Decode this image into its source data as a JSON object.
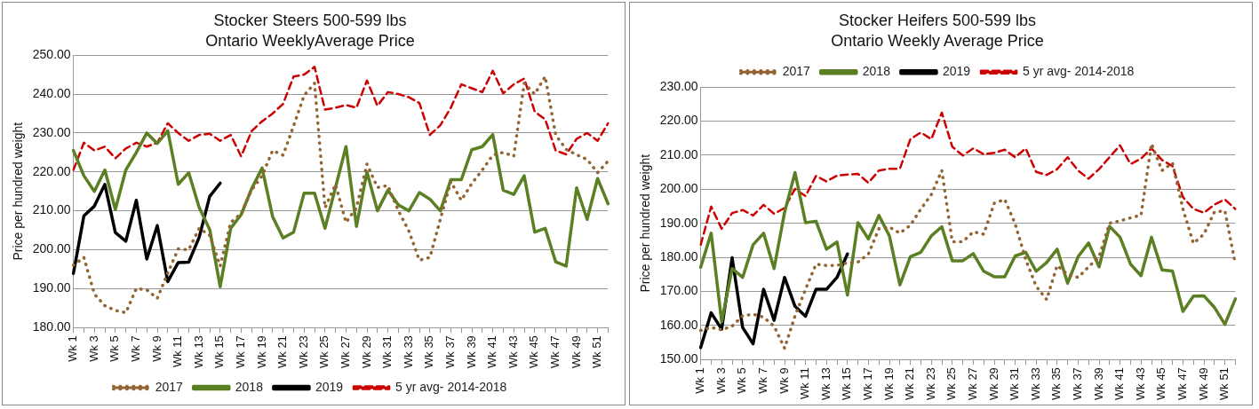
{
  "chart_data": [
    {
      "type": "line",
      "title": "Stocker Steers 500-599 lbs",
      "subtitle": "Ontario WeeklyAverage Price",
      "ylabel": "Price per hundred weight",
      "categories": [
        "Wk 1",
        null,
        "Wk 3",
        null,
        "Wk 5",
        null,
        "Wk 7",
        null,
        "Wk 9",
        null,
        "Wk 11",
        null,
        "Wk 13",
        null,
        "Wk 15",
        null,
        "Wk 17",
        null,
        "Wk 19",
        null,
        "Wk 21",
        null,
        "Wk 23",
        null,
        "Wk 25",
        null,
        "Wk 27",
        null,
        "Wk 29",
        null,
        "Wk 31",
        null,
        "Wk 33",
        null,
        "Wk 35",
        null,
        "Wk 37",
        null,
        "Wk 39",
        null,
        "Wk 41",
        null,
        "Wk 43",
        null,
        "Wk 45",
        null,
        "Wk 47",
        null,
        "Wk 49",
        null,
        "Wk 51",
        null
      ],
      "ylim": [
        180,
        250
      ],
      "yticks": [
        {
          "value": 180,
          "label": "180.00"
        },
        {
          "value": 190,
          "label": "190.00"
        },
        {
          "value": 200,
          "label": "200.00"
        },
        {
          "value": 210,
          "label": "210.00"
        },
        {
          "value": 220,
          "label": "220.00"
        },
        {
          "value": 230,
          "label": "230.00"
        },
        {
          "value": 240,
          "label": "240.00"
        },
        {
          "value": 250,
          "label": "250.00"
        }
      ],
      "grid": "y",
      "legend": "bottom",
      "series": [
        {
          "name": "2017",
          "color": "#946432",
          "line_style": "dotted",
          "values": [
            196,
            198,
            188.6,
            185.6,
            184.4,
            183.8,
            190,
            189.7,
            187.5,
            194,
            200.2,
            200,
            205.5,
            203.7,
            195.8,
            207,
            209.3,
            215.3,
            219,
            225.5,
            224.3,
            231.8,
            239.6,
            242.8,
            210.8,
            216.8,
            207,
            210.8,
            222,
            216,
            216.5,
            210,
            204.8,
            197.3,
            198,
            207.8,
            217.5,
            212.7,
            217,
            220.5,
            224.3,
            225,
            224,
            242.8,
            240,
            244.5,
            229.5,
            225.8,
            224.4,
            223.2,
            219.8,
            222.8
          ]
        },
        {
          "name": "2018",
          "color": "#5b7f23",
          "line_style": "solid",
          "values": [
            225.5,
            219,
            215,
            220.5,
            210.3,
            220.5,
            225,
            230,
            227.3,
            230.6,
            216.8,
            219.8,
            210.8,
            205.2,
            190.5,
            205.5,
            209,
            215.7,
            221,
            208.5,
            203,
            204.5,
            214.5,
            214.5,
            205.5,
            216,
            226.5,
            206,
            220,
            210,
            215.3,
            211.5,
            210,
            214.7,
            213,
            210,
            218,
            218,
            225.7,
            226.5,
            229.6,
            215.3,
            214.2,
            219,
            204.5,
            205.5,
            196.9,
            195.8,
            215.9,
            207.8,
            218.3,
            211.8
          ]
        },
        {
          "name": "2019",
          "color": "#000000",
          "line_style": "solid",
          "values": [
            193.9,
            208.7,
            211.2,
            216.8,
            204.4,
            202.2,
            212.7,
            197.6,
            206.2,
            191.8,
            196.7,
            196.8,
            203.2,
            213.7,
            217.1,
            null,
            null,
            null,
            null,
            null,
            null,
            null,
            null,
            null,
            null,
            null,
            null,
            null,
            null,
            null,
            null,
            null,
            null,
            null,
            null,
            null,
            null,
            null,
            null,
            null,
            null,
            null,
            null,
            null,
            null,
            null,
            null,
            null,
            null,
            null,
            null,
            null
          ]
        },
        {
          "name": "5 yr avg- 2014-2018",
          "color": "#cc0000",
          "line_style": "dashed",
          "values": [
            220.5,
            227.5,
            225.5,
            226.5,
            223.5,
            226,
            227.5,
            226.5,
            227.5,
            232.5,
            230,
            228,
            229.5,
            229.8,
            228,
            229.5,
            224,
            230.5,
            233,
            235,
            237.5,
            244.5,
            245,
            247,
            236,
            236.5,
            237.2,
            236.5,
            243.5,
            237,
            240.5,
            240,
            239.2,
            237.7,
            229.5,
            232,
            236.5,
            242.5,
            241.5,
            240.5,
            246,
            240.2,
            242.5,
            244,
            235.5,
            233.5,
            225.5,
            224.5,
            228.5,
            230,
            228,
            232.5
          ]
        }
      ]
    },
    {
      "type": "line",
      "title": "Stocker Heifers 500-599 lbs",
      "subtitle": "Ontario Weekly Average Price",
      "ylabel": "Price per hundred weight",
      "categories": [
        "Wk 1",
        null,
        "Wk 3",
        null,
        "Wk 5",
        null,
        "Wk 7",
        null,
        "Wk 9",
        null,
        "Wk 11",
        null,
        "Wk 13",
        null,
        "Wk 15",
        null,
        "Wk 17",
        null,
        "Wk 19",
        null,
        "Wk 21",
        null,
        "Wk 23",
        null,
        "Wk 25",
        null,
        "Wk 27",
        null,
        "Wk 29",
        null,
        "Wk 31",
        null,
        "Wk 33",
        null,
        "Wk 35",
        null,
        "Wk 37",
        null,
        "Wk 39",
        null,
        "Wk 41",
        null,
        "Wk 43",
        null,
        "Wk 45",
        null,
        "Wk 47",
        null,
        "Wk 49",
        null,
        "Wk 51",
        null
      ],
      "ylim": [
        150,
        230
      ],
      "yticks": [
        {
          "value": 150,
          "label": "150.00"
        },
        {
          "value": 160,
          "label": "160.00"
        },
        {
          "value": 170,
          "label": "170.00"
        },
        {
          "value": 180,
          "label": "180.00"
        },
        {
          "value": 190,
          "label": "190.00"
        },
        {
          "value": 200,
          "label": "200.00"
        },
        {
          "value": 210,
          "label": "210.00"
        },
        {
          "value": 220,
          "label": "220.00"
        },
        {
          "value": 230,
          "label": "230.00"
        }
      ],
      "grid": "y",
      "legend": "top",
      "series": [
        {
          "name": "2017",
          "color": "#946432",
          "line_style": "dotted",
          "values": [
            158.5,
            159.4,
            158.7,
            159.8,
            162.8,
            163.3,
            162.4,
            159.8,
            153.3,
            162.8,
            170.6,
            178,
            177.6,
            177.6,
            178.4,
            178.6,
            181,
            188.4,
            188.9,
            187.1,
            189.4,
            194.2,
            198.4,
            205.5,
            184.6,
            184.6,
            187.5,
            186.8,
            195.9,
            197,
            189.8,
            179.4,
            171.5,
            167.6,
            177.6,
            175,
            174.1,
            177.2,
            180.2,
            190,
            190.7,
            191.6,
            192.4,
            213.4,
            205.5,
            207.7,
            194.2,
            184.1,
            186.8,
            193.3,
            193.7,
            178
          ]
        },
        {
          "name": "2018",
          "color": "#5b7f23",
          "line_style": "solid",
          "values": [
            177.1,
            187.1,
            161.1,
            176.7,
            174.1,
            183.7,
            187.1,
            176.7,
            193.2,
            204.9,
            190.2,
            190.6,
            182.4,
            184.5,
            168.9,
            190.2,
            185.4,
            192.3,
            186.3,
            171.9,
            180.2,
            181.5,
            186.3,
            189,
            179,
            179,
            181.1,
            175.9,
            174.3,
            174.3,
            180.4,
            181.5,
            175.9,
            178.5,
            182.4,
            172.4,
            180.2,
            184.2,
            177.2,
            189.1,
            185.9,
            178,
            174.6,
            185.9,
            176.3,
            176,
            164.1,
            168.6,
            168.7,
            165.3,
            160.3,
            167.8
          ]
        },
        {
          "name": "2019",
          "color": "#000000",
          "line_style": "solid",
          "values": [
            153.5,
            163.7,
            158.9,
            179.9,
            159.4,
            154.6,
            170.6,
            161.5,
            174.1,
            165.6,
            162.7,
            170.6,
            170.6,
            174.1,
            181,
            null,
            null,
            null,
            null,
            null,
            null,
            null,
            null,
            null,
            null,
            null,
            null,
            null,
            null,
            null,
            null,
            null,
            null,
            null,
            null,
            null,
            null,
            null,
            null,
            null,
            null,
            null,
            null,
            null,
            null,
            null,
            null,
            null,
            null,
            null,
            null,
            null
          ]
        },
        {
          "name": "5 yr avg- 2014-2018",
          "color": "#cc0000",
          "line_style": "dashed",
          "values": [
            183.7,
            194.9,
            188.4,
            193,
            193.9,
            192.3,
            195.4,
            192.8,
            194.5,
            200.1,
            198,
            203.9,
            202.3,
            204,
            204.3,
            204.5,
            201.9,
            205.5,
            206,
            206,
            214.7,
            216.7,
            214.7,
            222.5,
            212.5,
            209.9,
            212,
            210.3,
            210.7,
            211.6,
            209.4,
            212,
            205.1,
            204.2,
            205.9,
            209.4,
            205.5,
            203.1,
            205.9,
            209.4,
            212.9,
            207.4,
            209,
            212,
            208.6,
            206.8,
            197.7,
            194.2,
            193.1,
            195.5,
            197,
            194.2
          ]
        }
      ]
    }
  ]
}
